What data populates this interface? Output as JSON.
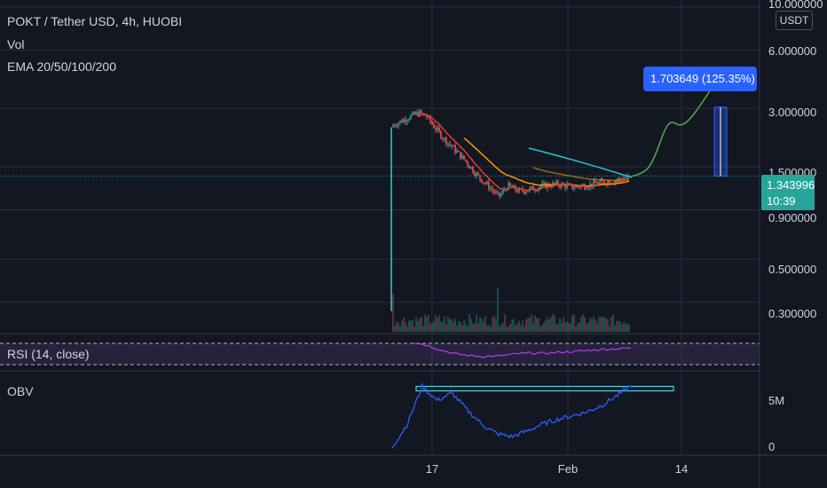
{
  "header": {
    "symbol": "POKT / Tether USD, 4h, HUOBI",
    "indicator_vol": "Vol",
    "indicator_ema": "EMA 20/50/100/200"
  },
  "price_axis": {
    "unit": "USDT",
    "ticks": [
      "10.000000",
      "6.000000",
      "3.000000",
      "1.500000",
      "0.900000",
      "0.500000",
      "0.300000"
    ]
  },
  "current_price": {
    "value": "1.343996",
    "countdown": "10:39"
  },
  "measure_tool": {
    "text": "1.703649 (125.35%) 1703649"
  },
  "rsi_pane": {
    "label": "RSI (14, close)"
  },
  "obv_pane": {
    "label": "OBV",
    "ticks": [
      "5M",
      "0"
    ]
  },
  "time_axis": {
    "ticks": [
      "17",
      "Feb",
      "14"
    ]
  },
  "colors": {
    "background": "#131722",
    "grid": "#2a2e39",
    "candle_up": "#26a69a",
    "candle_down": "#ef5350",
    "ema20": "#e53935",
    "ema50": "#ff9800",
    "ema100": "#26c6da",
    "projection": "#4caf50",
    "rsi": "#b040e0",
    "obv": "#2962ff",
    "measure": "#2962ff",
    "price_tag": "#26a69a"
  },
  "chart_data": [
    {
      "type": "candlestick",
      "title": "POKT / Tether USD, 4h, HUOBI",
      "scale": "log",
      "y_ticks": [
        10,
        6,
        3,
        1.5,
        0.9,
        0.5,
        0.3
      ],
      "x_ticks": [
        "17",
        "Feb",
        "14"
      ],
      "approx_close_path": [
        2.4,
        2.6,
        2.8,
        2.9,
        2.6,
        2.2,
        1.8,
        1.4,
        1.1,
        1.05,
        1.2,
        1.15,
        1.18,
        1.2,
        1.22,
        1.25,
        1.3,
        1.34
      ],
      "current_price": 1.343996,
      "ema_series": [
        "EMA 20",
        "EMA 50",
        "EMA 100",
        "EMA 200"
      ],
      "projection_target": 3.047645,
      "projection_gain": 1.703649,
      "projection_percent": 125.35
    },
    {
      "type": "line",
      "title": "RSI (14, close)",
      "approx_values": [
        78,
        70,
        55,
        45,
        40,
        38,
        40,
        45,
        48,
        47,
        50,
        52,
        55,
        58,
        60,
        62
      ]
    },
    {
      "type": "line",
      "title": "OBV",
      "y_ticks": [
        "5M",
        "0"
      ],
      "approx_values_millions": [
        0.1,
        2.5,
        6.5,
        5.0,
        5.8,
        4.0,
        2.5,
        1.5,
        1.2,
        1.8,
        2.5,
        3.0,
        3.4,
        3.8,
        4.5,
        5.5,
        6.6
      ],
      "level_line_millions": 6.3
    }
  ]
}
